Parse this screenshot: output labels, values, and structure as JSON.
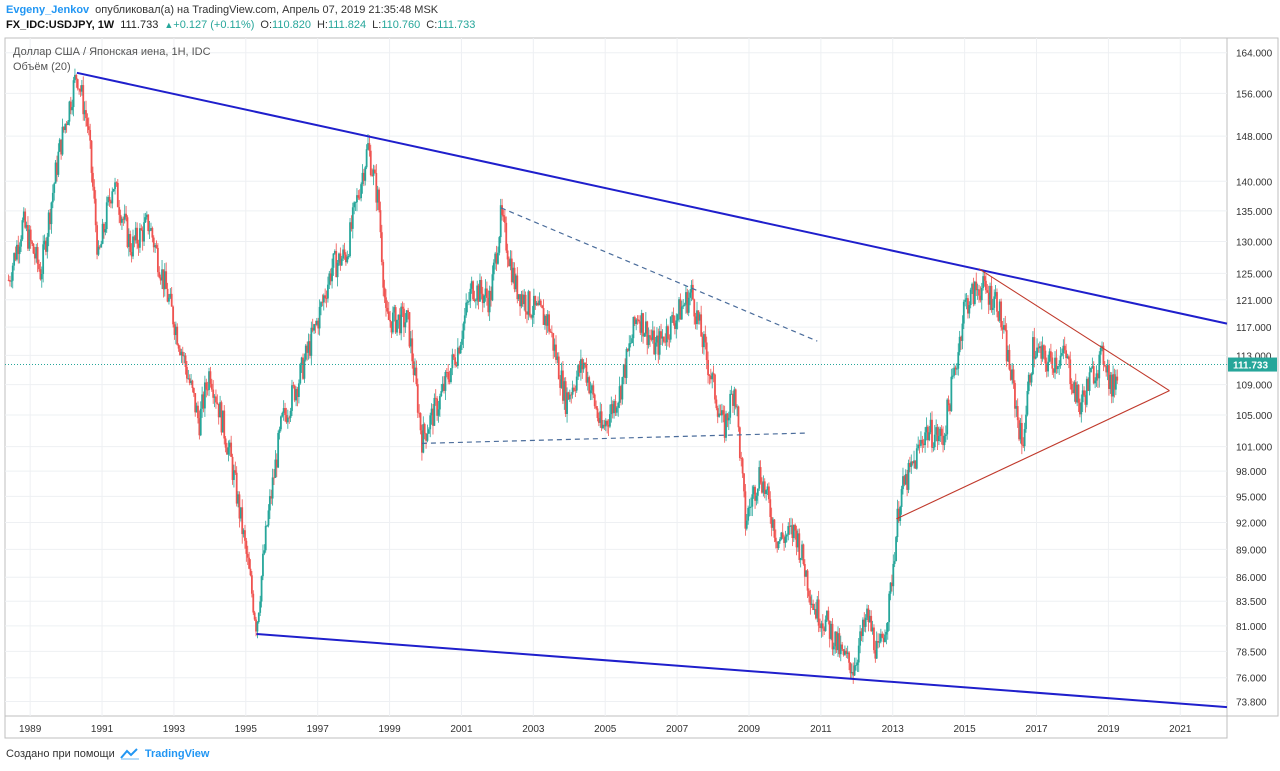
{
  "header": {
    "author": "Evgeny_Jenkov",
    "published_text": "опубликовал(а) на TradingView.com, Апрель 07, 2019 21:35:48 MSK",
    "symbol": "FX_IDC:USDJPY, 1W",
    "last": "111.733",
    "change": "+0.127 (+0.11%)",
    "open_label": "O:",
    "open": "110.820",
    "high_label": "H:",
    "high": "111.824",
    "low_label": "L:",
    "low": "110.760",
    "close_label": "C:",
    "close": "111.733"
  },
  "chart_legend": {
    "title": "Доллар США / Японская иена, 1Н, IDC",
    "indicator": "Объём (20)"
  },
  "footer": {
    "created_with": "Создано при помощи",
    "brand": "TradingView"
  },
  "colors": {
    "up": "#26a69a",
    "down": "#ef5350",
    "trendline": "#1f1fcc",
    "dashed": "#4a6c9b",
    "triangle": "#c0392b",
    "price_line": "#26a69a"
  },
  "chart_data": {
    "type": "candlestick",
    "title": "Доллар США / Японская иена, 1Н, IDC",
    "x_ticks": [
      "1989",
      "1991",
      "1993",
      "1995",
      "1997",
      "1999",
      "2001",
      "2003",
      "2005",
      "2007",
      "2009",
      "2011",
      "2013",
      "2015",
      "2017",
      "2019",
      "2021"
    ],
    "y_ticks": [
      "164.000",
      "156.000",
      "148.000",
      "140.000",
      "135.000",
      "130.000",
      "125.000",
      "121.000",
      "117.000",
      "113.000",
      "109.000",
      "105.000",
      "101.000",
      "98.000",
      "95.000",
      "92.000",
      "89.000",
      "86.000",
      "83.500",
      "81.000",
      "78.500",
      "76.000",
      "73.800"
    ],
    "x_range": [
      1988.3,
      2022.3
    ],
    "y_range": [
      72.5,
      167
    ],
    "y_scale": "log",
    "last_price": 111.733,
    "price_path": [
      [
        1988.4,
        124
      ],
      [
        1988.8,
        133
      ],
      [
        1989.3,
        125
      ],
      [
        1989.8,
        145
      ],
      [
        1990.3,
        160
      ],
      [
        1990.6,
        150
      ],
      [
        1990.9,
        127
      ],
      [
        1991.3,
        140
      ],
      [
        1991.8,
        129
      ],
      [
        1992.3,
        133
      ],
      [
        1992.8,
        122
      ],
      [
        1993.3,
        112
      ],
      [
        1993.7,
        104
      ],
      [
        1994.0,
        111
      ],
      [
        1994.6,
        99
      ],
      [
        1995.3,
        81
      ],
      [
        1995.6,
        92
      ],
      [
        1996.0,
        104
      ],
      [
        1996.5,
        110
      ],
      [
        1997.0,
        118
      ],
      [
        1997.4,
        126
      ],
      [
        1997.8,
        128
      ],
      [
        1998.4,
        146
      ],
      [
        1998.7,
        136
      ],
      [
        1998.9,
        118
      ],
      [
        1999.5,
        118
      ],
      [
        1999.9,
        102
      ],
      [
        2000.4,
        107
      ],
      [
        2000.9,
        114
      ],
      [
        2001.3,
        123
      ],
      [
        2001.8,
        121
      ],
      [
        2002.1,
        134
      ],
      [
        2002.5,
        123
      ],
      [
        2002.9,
        120
      ],
      [
        2003.4,
        118
      ],
      [
        2003.9,
        107
      ],
      [
        2004.4,
        112
      ],
      [
        2004.9,
        103
      ],
      [
        2005.4,
        108
      ],
      [
        2005.9,
        119
      ],
      [
        2006.4,
        114
      ],
      [
        2006.9,
        118
      ],
      [
        2007.4,
        122
      ],
      [
        2007.8,
        113
      ],
      [
        2008.3,
        103
      ],
      [
        2008.6,
        109
      ],
      [
        2008.9,
        92
      ],
      [
        2009.3,
        98
      ],
      [
        2009.8,
        90
      ],
      [
        2010.3,
        91
      ],
      [
        2010.8,
        83
      ],
      [
        2011.2,
        81
      ],
      [
        2011.6,
        78
      ],
      [
        2011.9,
        77
      ],
      [
        2012.3,
        82
      ],
      [
        2012.6,
        78
      ],
      [
        2012.9,
        83
      ],
      [
        2013.2,
        95
      ],
      [
        2013.6,
        99
      ],
      [
        2013.9,
        103
      ],
      [
        2014.4,
        102
      ],
      [
        2014.8,
        113
      ],
      [
        2014.98,
        120
      ],
      [
        2015.4,
        123
      ],
      [
        2015.9,
        121
      ],
      [
        2016.3,
        110
      ],
      [
        2016.6,
        101
      ],
      [
        2016.9,
        114
      ],
      [
        2017.3,
        112
      ],
      [
        2017.8,
        113
      ],
      [
        2018.2,
        106
      ],
      [
        2018.6,
        111
      ],
      [
        2018.9,
        113
      ],
      [
        2019.1,
        108
      ],
      [
        2019.27,
        111.733
      ]
    ],
    "annotations": [
      {
        "type": "trendline",
        "style": "solid",
        "color": "#1f1fcc",
        "points": [
          [
            1990.3,
            160
          ],
          [
            2022.3,
            117.5
          ]
        ]
      },
      {
        "type": "trendline",
        "style": "solid",
        "color": "#1f1fcc",
        "points": [
          [
            1995.3,
            80.2
          ],
          [
            2022.3,
            73.3
          ]
        ]
      },
      {
        "type": "trendline",
        "style": "dashed",
        "color": "#4a6c9b",
        "points": [
          [
            2002.1,
            135.5
          ],
          [
            2010.9,
            115
          ]
        ]
      },
      {
        "type": "trendline",
        "style": "dashed",
        "color": "#4a6c9b",
        "points": [
          [
            1999.9,
            101.4
          ],
          [
            2010.6,
            102.7
          ]
        ]
      },
      {
        "type": "trendline",
        "style": "solid",
        "color": "#c0392b",
        "points": [
          [
            2015.4,
            125.7
          ],
          [
            2020.7,
            108.2
          ]
        ]
      },
      {
        "type": "trendline",
        "style": "solid",
        "color": "#c0392b",
        "points": [
          [
            2013.1,
            92.4
          ],
          [
            2020.7,
            108.2
          ]
        ]
      }
    ]
  }
}
